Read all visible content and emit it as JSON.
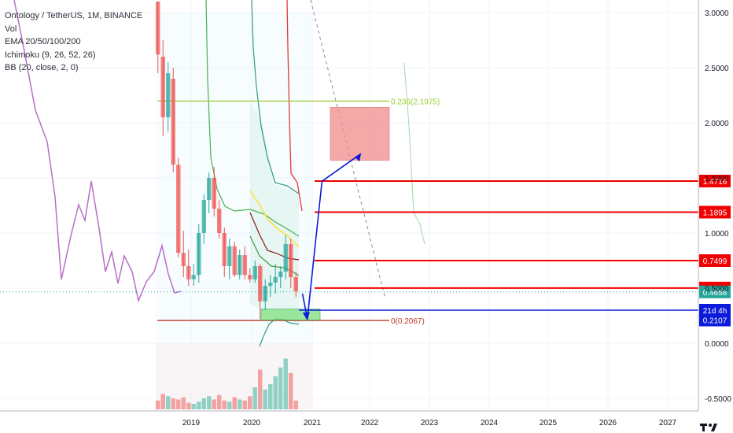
{
  "legend": {
    "title": "Ontology / TetherUS, 1M, BINANCE",
    "items": [
      "Vol",
      "EMA 20/50/100/200",
      "Ichimoku (9, 26, 52, 26)",
      "BB (20, close, 2, 0)"
    ]
  },
  "colors": {
    "bull": "#26a69a",
    "bear": "#ef5350",
    "price_line_red": "#f00000",
    "projection_blue": "#0c1ad9",
    "fib_green": "#9acd32",
    "purple": "#b96ec7",
    "target_box": "#f28b8b",
    "support_box": "#7fe07f"
  },
  "chart_data": {
    "type": "candlestick",
    "title": "Ontology / TetherUS, 1M, BINANCE",
    "y_axis": {
      "min": -0.6,
      "max": 3.1,
      "ticks": [
        3.0,
        2.5,
        2.0,
        1.5,
        1.0,
        0.5,
        0.0,
        -0.5
      ],
      "tick_labels": [
        "3.0000",
        "2.5000",
        "2.0000",
        "1.5000",
        "1.0000",
        "0.5000",
        "0.0000",
        "-0.5000"
      ]
    },
    "x_axis": {
      "ticks": [
        "2019",
        "2020",
        "2021",
        "2022",
        "2023",
        "2024",
        "2025",
        "2026",
        "2027"
      ]
    },
    "candles": [
      {
        "o": 3.1,
        "h": 3.1,
        "l": 2.45,
        "c": 2.62
      },
      {
        "o": 2.6,
        "h": 2.75,
        "l": 1.88,
        "c": 2.05
      },
      {
        "o": 2.05,
        "h": 2.55,
        "l": 1.92,
        "c": 2.45
      },
      {
        "o": 2.4,
        "h": 2.5,
        "l": 1.55,
        "c": 1.62
      },
      {
        "o": 1.62,
        "h": 1.68,
        "l": 0.78,
        "c": 0.82
      },
      {
        "o": 0.82,
        "h": 1.02,
        "l": 0.6,
        "c": 0.7
      },
      {
        "o": 0.7,
        "h": 0.85,
        "l": 0.52,
        "c": 0.58
      },
      {
        "o": 0.58,
        "h": 0.72,
        "l": 0.52,
        "c": 0.62
      },
      {
        "o": 0.62,
        "h": 1.08,
        "l": 0.55,
        "c": 1.0
      },
      {
        "o": 1.0,
        "h": 1.35,
        "l": 0.9,
        "c": 1.3
      },
      {
        "o": 1.3,
        "h": 1.55,
        "l": 1.18,
        "c": 1.5
      },
      {
        "o": 1.5,
        "h": 1.6,
        "l": 1.15,
        "c": 1.22
      },
      {
        "o": 1.22,
        "h": 1.3,
        "l": 0.95,
        "c": 1.0
      },
      {
        "o": 1.0,
        "h": 1.05,
        "l": 0.6,
        "c": 0.7
      },
      {
        "o": 0.7,
        "h": 0.95,
        "l": 0.58,
        "c": 0.88
      },
      {
        "o": 0.88,
        "h": 0.92,
        "l": 0.6,
        "c": 0.62
      },
      {
        "o": 0.62,
        "h": 0.85,
        "l": 0.58,
        "c": 0.8
      },
      {
        "o": 0.8,
        "h": 0.88,
        "l": 0.58,
        "c": 0.62
      },
      {
        "o": 0.62,
        "h": 0.68,
        "l": 0.55,
        "c": 0.58
      },
      {
        "o": 0.58,
        "h": 0.75,
        "l": 0.55,
        "c": 0.7
      },
      {
        "o": 0.7,
        "h": 0.72,
        "l": 0.22,
        "c": 0.38
      },
      {
        "o": 0.38,
        "h": 0.58,
        "l": 0.3,
        "c": 0.52
      },
      {
        "o": 0.52,
        "h": 0.62,
        "l": 0.42,
        "c": 0.55
      },
      {
        "o": 0.55,
        "h": 0.72,
        "l": 0.45,
        "c": 0.6
      },
      {
        "o": 0.6,
        "h": 0.7,
        "l": 0.5,
        "c": 0.65
      },
      {
        "o": 0.65,
        "h": 0.98,
        "l": 0.58,
        "c": 0.9
      },
      {
        "o": 0.9,
        "h": 0.95,
        "l": 0.5,
        "c": 0.6
      },
      {
        "o": 0.6,
        "h": 0.65,
        "l": 0.42,
        "c": 0.47
      }
    ],
    "volume": [
      0.08,
      0.14,
      0.12,
      0.1,
      0.09,
      0.11,
      0.06,
      0.05,
      0.07,
      0.1,
      0.12,
      0.09,
      0.13,
      0.08,
      0.07,
      0.11,
      0.09,
      0.08,
      0.12,
      0.2,
      0.36,
      0.18,
      0.23,
      0.3,
      0.38,
      0.46,
      0.33,
      0.08
    ],
    "price_levels": [
      {
        "value": 1.4716,
        "label": "1.4716",
        "color": "#f00000"
      },
      {
        "value": 1.1895,
        "label": "1.1895",
        "color": "#f00000"
      },
      {
        "value": 0.7499,
        "label": "0.7499",
        "color": "#f00000"
      },
      {
        "value": 0.501,
        "label": "0.5010",
        "color": "#f00000"
      }
    ],
    "axis_badges": [
      {
        "value": 0.4658,
        "label": "0.4658",
        "color": "#26a69a"
      },
      {
        "value": 0.3,
        "label": "21d 4h",
        "color": "#0c1ad9"
      },
      {
        "value": 0.2107,
        "label": "0.2107",
        "color": "#0c1ad9"
      }
    ],
    "fib": [
      {
        "value": 2.1975,
        "label": "0.236(2.1975)",
        "color": "#9acd32"
      },
      {
        "value": 0.2067,
        "label": "0(0.2067)",
        "color": "#c0392b"
      }
    ],
    "target_zone": {
      "low": 1.66,
      "high": 2.14
    },
    "support_zone": {
      "low": 0.21,
      "high": 0.31
    },
    "projection": [
      {
        "x": "2020-11",
        "y": 0.45
      },
      {
        "x": "2020-12",
        "y": 0.22
      },
      {
        "x": "2021-03",
        "y": 1.47
      },
      {
        "x": "2021-11",
        "y": 1.72
      }
    ]
  }
}
